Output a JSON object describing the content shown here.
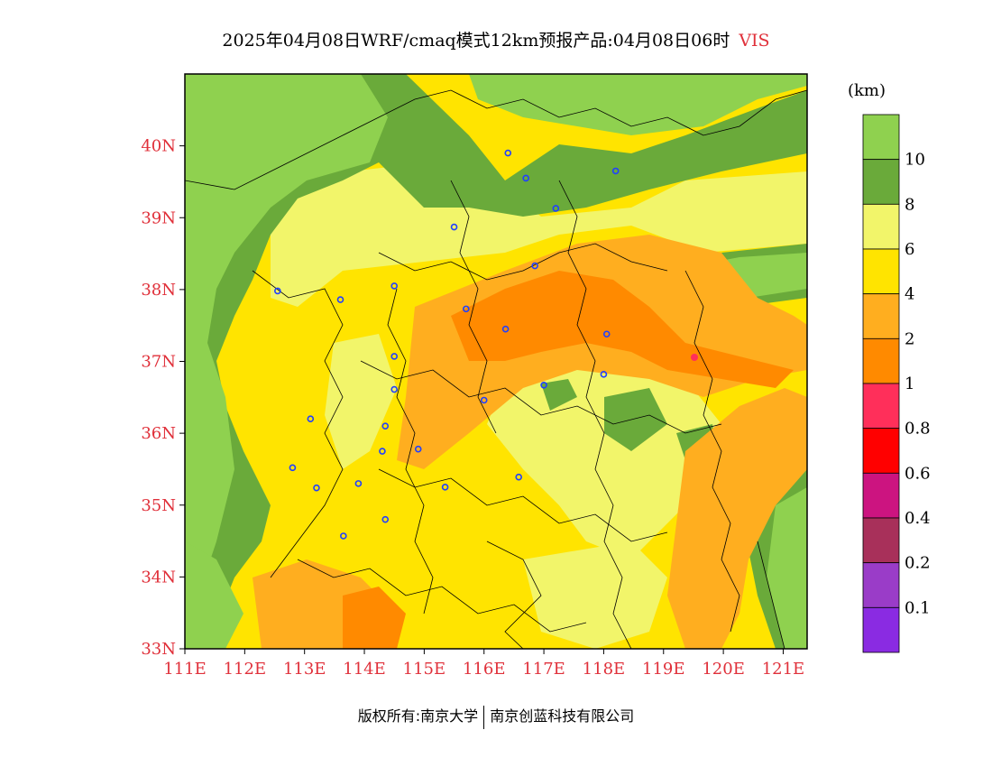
{
  "title": {
    "main": "2025年04月08日WRF/cmaq模式12km预报产品:04月08日06时",
    "variable": "VIS"
  },
  "colorbar": {
    "unit": "(km)",
    "bins": [
      {
        "color": "#8fd14f",
        "label": ""
      },
      {
        "color": "#6aaa3a",
        "label": "10"
      },
      {
        "color": "#f2f56a",
        "label": "8"
      },
      {
        "color": "#ffe400",
        "label": "6"
      },
      {
        "color": "#ffae1f",
        "label": "4"
      },
      {
        "color": "#ff8a00",
        "label": "2"
      },
      {
        "color": "#ff2f5a",
        "label": "1"
      },
      {
        "color": "#ff0000",
        "label": "0.8"
      },
      {
        "color": "#cc1480",
        "label": "0.6"
      },
      {
        "color": "#a8305a",
        "label": "0.4"
      },
      {
        "color": "#9a3cc8",
        "label": "0.2"
      },
      {
        "color": "#8a2be2",
        "label": "0.1"
      }
    ]
  },
  "axes": {
    "x_ticks": [
      "111E",
      "112E",
      "113E",
      "114E",
      "115E",
      "116E",
      "117E",
      "118E",
      "119E",
      "120E",
      "121E"
    ],
    "y_ticks": [
      "33N",
      "34N",
      "35N",
      "36N",
      "37N",
      "38N",
      "39N",
      "40N"
    ]
  },
  "cities": [
    {
      "lon": 116.4,
      "lat": 39.9
    },
    {
      "lon": 116.7,
      "lat": 39.55
    },
    {
      "lon": 117.2,
      "lat": 39.13
    },
    {
      "lon": 118.2,
      "lat": 39.65
    },
    {
      "lon": 115.5,
      "lat": 38.87
    },
    {
      "lon": 116.85,
      "lat": 38.33
    },
    {
      "lon": 114.5,
      "lat": 38.05
    },
    {
      "lon": 112.55,
      "lat": 37.98
    },
    {
      "lon": 113.6,
      "lat": 37.86
    },
    {
      "lon": 115.7,
      "lat": 37.73
    },
    {
      "lon": 116.36,
      "lat": 37.45
    },
    {
      "lon": 118.05,
      "lat": 37.38
    },
    {
      "lon": 114.5,
      "lat": 37.07
    },
    {
      "lon": 114.5,
      "lat": 36.61
    },
    {
      "lon": 117.0,
      "lat": 36.67
    },
    {
      "lon": 118.0,
      "lat": 36.82
    },
    {
      "lon": 116.0,
      "lat": 36.46
    },
    {
      "lon": 113.1,
      "lat": 36.2
    },
    {
      "lon": 114.35,
      "lat": 36.1
    },
    {
      "lon": 114.3,
      "lat": 35.75
    },
    {
      "lon": 114.9,
      "lat": 35.78
    },
    {
      "lon": 112.8,
      "lat": 35.52
    },
    {
      "lon": 113.9,
      "lat": 35.3
    },
    {
      "lon": 113.2,
      "lat": 35.24
    },
    {
      "lon": 115.35,
      "lat": 35.25
    },
    {
      "lon": 116.58,
      "lat": 35.39
    },
    {
      "lon": 114.35,
      "lat": 34.8
    },
    {
      "lon": 113.65,
      "lat": 34.57
    }
  ],
  "footer": {
    "left": "版权所有:南京大学",
    "right": "南京创蓝科技有限公司"
  }
}
